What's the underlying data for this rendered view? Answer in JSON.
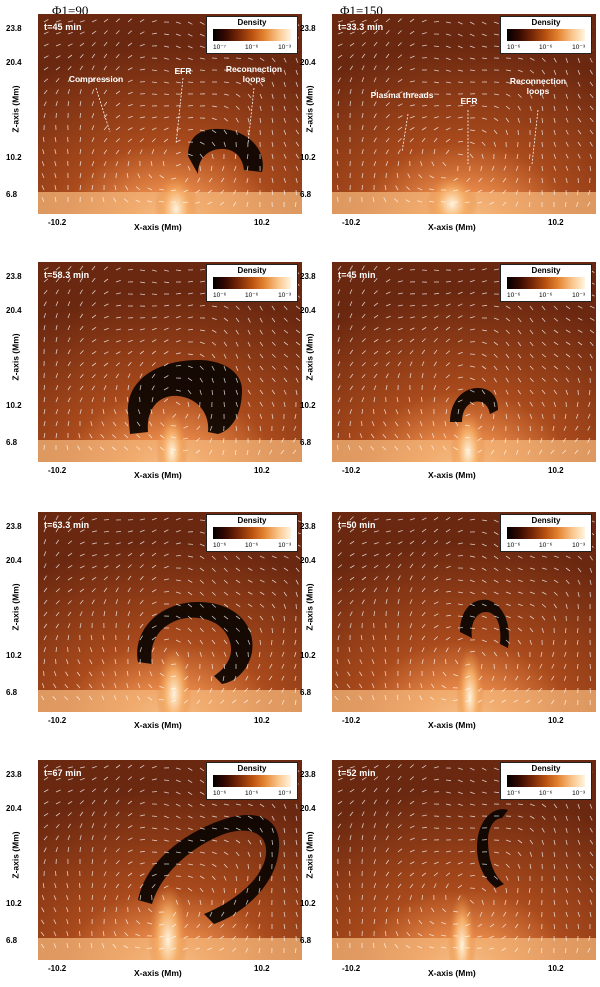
{
  "cases": [
    "Φ1=90",
    "Φ1=150"
  ],
  "axes": {
    "xlabel": "X-axis (Mm)",
    "ylabel": "Z-axis (Mm)",
    "xticks": [
      "-10.2",
      "10.2"
    ],
    "yticks": [
      "23.8",
      "20.4",
      "10.2",
      "6.8"
    ]
  },
  "colorbar": {
    "title": "Density",
    "ticks_panel1": [
      "10⁻⁷",
      "10⁻⁶",
      "10⁻³"
    ],
    "ticks_other": [
      "10⁻⁶",
      "10⁻⁶",
      "10⁻³"
    ]
  },
  "chart_data": [
    {
      "type": "heatmap",
      "case": "Φ1=90",
      "time": "t=45 min",
      "title": "",
      "xlabel": "X-axis (Mm)",
      "ylabel": "Z-axis (Mm)",
      "colorbar": "Density",
      "annotations": [
        "Compression",
        "EFR",
        "Reconnection loops"
      ]
    },
    {
      "type": "heatmap",
      "case": "Φ1=150",
      "time": "t=33.3 min",
      "title": "",
      "xlabel": "X-axis (Mm)",
      "ylabel": "Z-axis (Mm)",
      "colorbar": "Density",
      "annotations": [
        "Plasma threads",
        "EFR",
        "Reconnection loops"
      ]
    },
    {
      "type": "heatmap",
      "case": "Φ1=90",
      "time": "t=58.3 min",
      "title": "",
      "xlabel": "X-axis (Mm)",
      "ylabel": "Z-axis (Mm)",
      "colorbar": "Density"
    },
    {
      "type": "heatmap",
      "case": "Φ1=150",
      "time": "t=45 min",
      "title": "",
      "xlabel": "X-axis (Mm)",
      "ylabel": "Z-axis (Mm)",
      "colorbar": "Density"
    },
    {
      "type": "heatmap",
      "case": "Φ1=90",
      "time": "t=63.3 min",
      "title": "",
      "xlabel": "X-axis (Mm)",
      "ylabel": "Z-axis (Mm)",
      "colorbar": "Density"
    },
    {
      "type": "heatmap",
      "case": "Φ1=150",
      "time": "t=50 min",
      "title": "",
      "xlabel": "X-axis (Mm)",
      "ylabel": "Z-axis (Mm)",
      "colorbar": "Density"
    },
    {
      "type": "heatmap",
      "case": "Φ1=90",
      "time": "t=67 min",
      "title": "",
      "xlabel": "X-axis (Mm)",
      "ylabel": "Z-axis (Mm)",
      "colorbar": "Density"
    },
    {
      "type": "heatmap",
      "case": "Φ1=150",
      "time": "t=52 min",
      "title": "",
      "xlabel": "X-axis (Mm)",
      "ylabel": "Z-axis (Mm)",
      "colorbar": "Density"
    }
  ],
  "panels": [
    {
      "time": "t=45 min",
      "annotations": {
        "a": "Compression",
        "b": "EFR",
        "c": "Reconnection loops"
      }
    },
    {
      "time": "t=33.3 min",
      "annotations": {
        "a": "Plasma threads",
        "b": "EFR",
        "c": "Reconnection loops"
      }
    },
    {
      "time": "t=58.3 min"
    },
    {
      "time": "t=45 min"
    },
    {
      "time": "t=63.3 min"
    },
    {
      "time": "t=50 min"
    },
    {
      "time": "t=67 min"
    },
    {
      "time": "t=52 min"
    }
  ]
}
